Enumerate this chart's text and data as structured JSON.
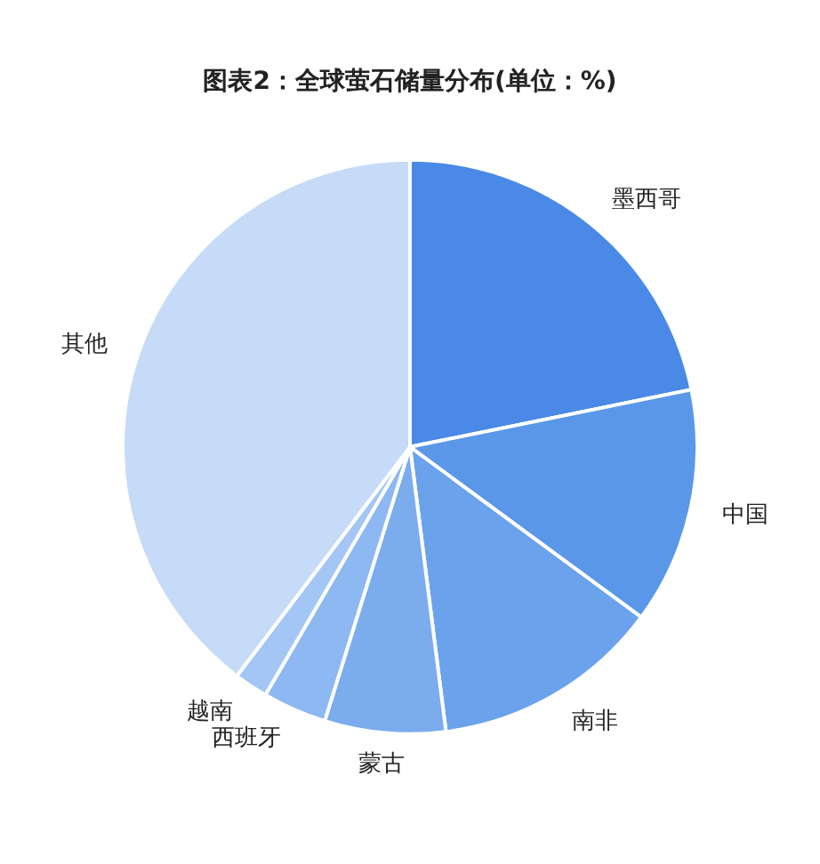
{
  "chart_data": {
    "type": "pie",
    "title": "图表2：全球萤石储量分布(单位：%)",
    "categories": [
      "墨西哥",
      "中国",
      "南非",
      "蒙古",
      "西班牙",
      "越南",
      "其他"
    ],
    "values": [
      21.8,
      13.3,
      12.9,
      6.8,
      3.6,
      1.9,
      39.7
    ],
    "colors": [
      "#4a8ae6",
      "#5b97e8",
      "#6aa2eb",
      "#7aacee",
      "#8db8f1",
      "#a3c6f4",
      "#c6dbf7"
    ]
  }
}
